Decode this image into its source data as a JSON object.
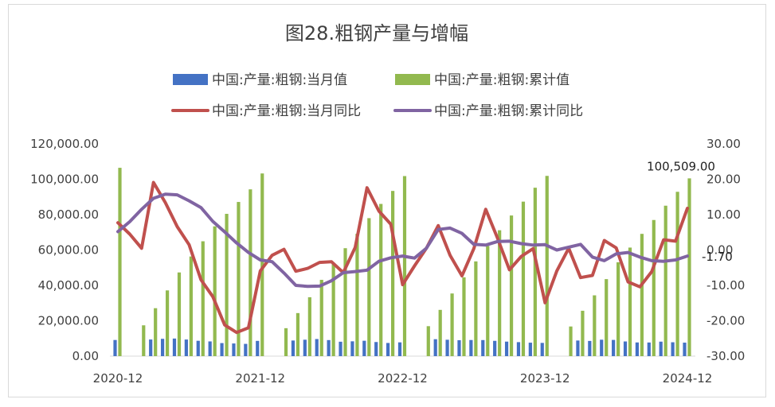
{
  "chart_data": {
    "type": "bar",
    "title": "图28.粗钢产量与增幅",
    "left_axis": {
      "min": 0,
      "max": 120000,
      "step": 20000,
      "tick_labels": [
        "0.00",
        "20,000.00",
        "40,000.00",
        "60,000.00",
        "80,000.00",
        "100,000.00",
        "120,000.00"
      ]
    },
    "right_axis": {
      "min": -30,
      "max": 30,
      "step": 10,
      "tick_labels": [
        "-30.00",
        "-20.00",
        "-10.00",
        "0.00",
        "10.00",
        "20.00",
        "30.00"
      ]
    },
    "x_tick_labels": [
      "2020-12",
      "2021-12",
      "2022-12",
      "2023-12",
      "2024-12"
    ],
    "x": [
      "2020-12",
      "2021-01",
      "2021-02",
      "2021-03",
      "2021-04",
      "2021-05",
      "2021-06",
      "2021-07",
      "2021-08",
      "2021-09",
      "2021-10",
      "2021-11",
      "2021-12",
      "2022-01",
      "2022-02",
      "2022-03",
      "2022-04",
      "2022-05",
      "2022-06",
      "2022-07",
      "2022-08",
      "2022-09",
      "2022-10",
      "2022-11",
      "2022-12",
      "2023-01",
      "2023-02",
      "2023-03",
      "2023-04",
      "2023-05",
      "2023-06",
      "2023-07",
      "2023-08",
      "2023-09",
      "2023-10",
      "2023-11",
      "2023-12",
      "2024-01",
      "2024-02",
      "2024-03",
      "2024-04",
      "2024-05",
      "2024-06",
      "2024-07",
      "2024-08",
      "2024-09",
      "2024-10",
      "2024-11",
      "2024-12"
    ],
    "series": [
      {
        "name": "中国:产量:粗钢:当月值",
        "kind": "bar",
        "axis": "left",
        "color": "#4472c4",
        "values": [
          9125,
          null,
          null,
          9402,
          9785,
          9945,
          9389,
          8679,
          8324,
          7375,
          7158,
          6931,
          8619,
          null,
          null,
          8830,
          9278,
          9661,
          9073,
          8143,
          8378,
          8695,
          7976,
          7441,
          7788,
          null,
          null,
          9573,
          9264,
          9012,
          9111,
          9080,
          8641,
          8209,
          7909,
          7610,
          7480,
          null,
          null,
          8827,
          8594,
          9286,
          9161,
          8294,
          7737,
          7707,
          8188,
          7840,
          7632
        ]
      },
      {
        "name": "中国:产量:粗钢:累计值",
        "kind": "bar",
        "axis": "left",
        "color": "#92b94f",
        "values": [
          106477,
          null,
          17423,
          27104,
          37164,
          47312,
          56333,
          64933,
          73371,
          80445,
          87163,
          94300,
          103279,
          null,
          15796,
          24338,
          33304,
          43132,
          52688,
          61029,
          69158,
          78016,
          86056,
          93407,
          101796,
          null,
          16937,
          26156,
          35420,
          44565,
          53564,
          62335,
          71168,
          79513,
          87349,
          95215,
          101908,
          null,
          16758,
          25655,
          34371,
          43541,
          53057,
          61372,
          69130,
          76966,
          85051,
          92906,
          100509
        ]
      },
      {
        "name": "中国:产量:粗钢:当月同比",
        "kind": "line",
        "axis": "right",
        "color": "#c0504d",
        "values": [
          7.7,
          4.5,
          0.5,
          19.1,
          13.4,
          6.6,
          1.5,
          -8.4,
          -13.2,
          -21.2,
          -23.3,
          -22.0,
          -5.9,
          -1.5,
          0.2,
          -6.0,
          -5.2,
          -3.5,
          -3.3,
          -6.4,
          0.7,
          17.6,
          11.0,
          7.3,
          -9.8,
          -4.5,
          0.5,
          6.9,
          -1.5,
          -7.3,
          0.4,
          11.5,
          3.3,
          -5.6,
          -1.8,
          0.4,
          -14.9,
          -5.9,
          0.5,
          -7.8,
          -7.2,
          2.7,
          0.6,
          -9.0,
          -10.4,
          -6.1,
          2.9,
          2.5,
          11.8
        ]
      },
      {
        "name": "中国:产量:粗钢:累计同比",
        "kind": "line",
        "axis": "right",
        "color": "#8064a2",
        "values": [
          5.2,
          8.0,
          11.5,
          14.6,
          15.8,
          15.6,
          13.9,
          12.0,
          8.1,
          5.1,
          2.0,
          -0.7,
          -2.8,
          -3.3,
          -6.5,
          -10.0,
          -10.3,
          -10.2,
          -8.7,
          -6.4,
          -6.1,
          -5.7,
          -3.2,
          -2.2,
          -1.7,
          -2.3,
          0.5,
          5.8,
          6.2,
          4.7,
          1.6,
          1.4,
          2.4,
          2.5,
          1.8,
          1.4,
          1.5,
          0.0,
          0.8,
          1.6,
          -2.0,
          -3.0,
          -1.1,
          -0.7,
          -2.0,
          -3.0,
          -3.2,
          -2.8,
          -1.7
        ]
      }
    ],
    "data_labels": [
      {
        "series": 1,
        "index": 48,
        "text": "100,509.00"
      },
      {
        "series": 3,
        "index": 48,
        "text": "-1.70"
      }
    ],
    "legend_position": "top-center",
    "grid": false
  }
}
